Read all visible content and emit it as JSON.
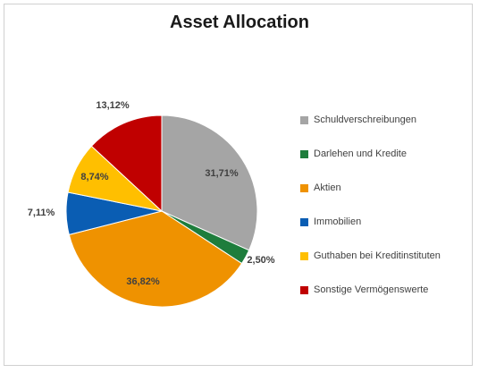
{
  "chart_data": {
    "type": "pie",
    "title": "Asset Allocation",
    "slices": [
      {
        "label": "Schuldverschreibungen",
        "value": 31.71,
        "display": "31,71%",
        "color": "#a5a5a5"
      },
      {
        "label": "Darlehen und Kredite",
        "value": 2.5,
        "display": "2,50%",
        "color": "#1e7d3c"
      },
      {
        "label": "Aktien",
        "value": 36.82,
        "display": "36,82%",
        "color": "#ef9200"
      },
      {
        "label": "Immobilien",
        "value": 7.11,
        "display": "7,11%",
        "color": "#0a5db3"
      },
      {
        "label": "Guthaben bei Kreditinstituten",
        "value": 8.74,
        "display": "8,74%",
        "color": "#ffbf00"
      },
      {
        "label": "Sonstige Vermögenswerte",
        "value": 13.12,
        "display": "13,12%",
        "color": "#c00000"
      }
    ],
    "legend_position": "right",
    "start_angle": "12 o'clock",
    "direction": "clockwise"
  }
}
